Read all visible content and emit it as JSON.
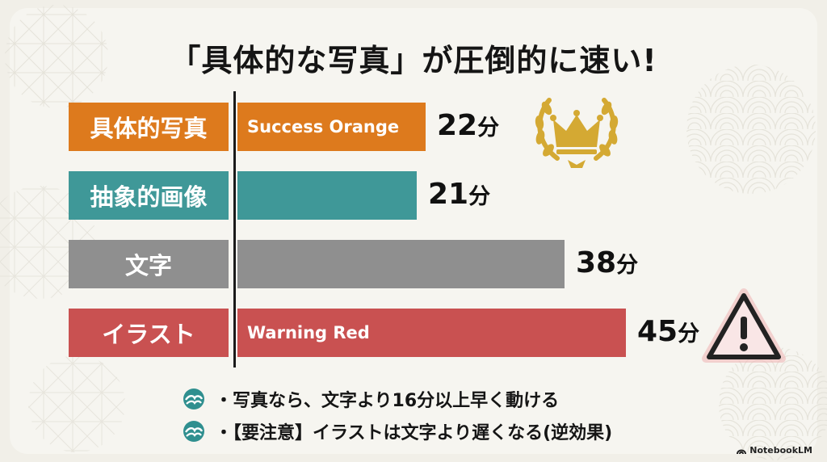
{
  "title": "「具体的な写真」が圧倒的に速い!",
  "colors": {
    "orange": "#dd7a1d",
    "teal": "#3f9898",
    "gray": "#8f8f8f",
    "red": "#c95151",
    "gold": "#d4a933"
  },
  "chart_data": {
    "type": "bar",
    "orientation": "horizontal",
    "categories": [
      "具体的写真",
      "抽象的画像",
      "文字",
      "イラスト"
    ],
    "values": [
      22,
      21,
      38,
      45
    ],
    "value_unit": "分",
    "bar_labels": [
      "Success Orange",
      "",
      "",
      "Warning Red"
    ],
    "annotations": [
      "crown-icon",
      "",
      "",
      "warning-icon"
    ],
    "grid": false
  },
  "bullets": [
    "・写真なら、文字より16分以上早く動ける",
    "・【要注意】イラストは文字より遅くなる(逆効果)"
  ],
  "brand": "NotebookLM"
}
